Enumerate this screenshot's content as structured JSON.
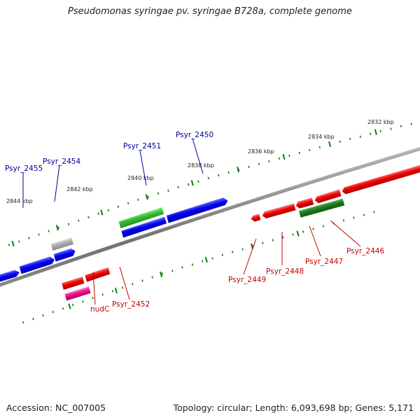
{
  "title": "Pseudomonas syringae pv. syringae B728a, complete genome",
  "footer": {
    "accession": "Accession: NC_007005",
    "topology": "Topology: circular; Length: 6,093,698 bp; Genes: 5,171"
  },
  "colors": {
    "backbone": "#808080",
    "forward_gene": "#0000ee",
    "reverse_gene": "#ee0000",
    "highlight_green": "#22aa22",
    "pseudo_gray": "#aaaaaa",
    "rna_pink": "#ee1188",
    "tick": "#117711",
    "label_forward": "#000099",
    "label_reverse": "#cc0000"
  },
  "scale_labels": [
    "2832 kbp",
    "2834 kbp",
    "2836 kbp",
    "2838 kbp",
    "2840 kbp",
    "2842 kbp",
    "2844 kbp"
  ],
  "gene_labels": {
    "forward": [
      "Psyr_2455",
      "Psyr_2454",
      "Psyr_2451",
      "Psyr_2450"
    ],
    "reverse": [
      "nudC",
      "Psyr_2452",
      "Psyr_2449",
      "Psyr_2448",
      "Psyr_2447",
      "Psyr_2446"
    ]
  }
}
